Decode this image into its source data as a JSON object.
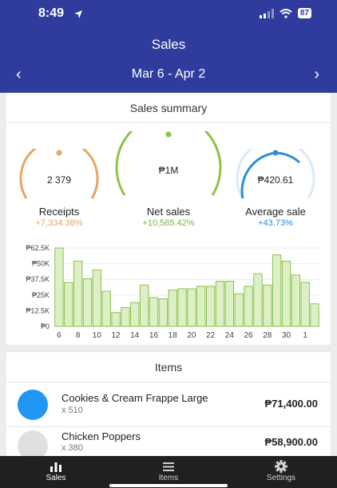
{
  "status_bar": {
    "time": "8:49",
    "battery": "87"
  },
  "header": {
    "title": "Sales",
    "date_range": "Mar 6 - Apr 2",
    "prev_icon": "chevron-left-icon",
    "next_icon": "chevron-right-icon"
  },
  "summary": {
    "title": "Sales summary",
    "metrics": [
      {
        "label": "Receipts",
        "value": "2 379",
        "change": "+7,334.38%",
        "color": "#e8a563",
        "change_color": "#e8a563"
      },
      {
        "label": "Net sales",
        "value": "₱1M",
        "change": "+10,585.42%",
        "color": "#8bc34a",
        "change_color": "#7cb342"
      },
      {
        "label": "Average sale",
        "value": "₱420.61",
        "change": "+43.73%",
        "color": "#2d8fd5",
        "change_color": "#2d8fd5"
      }
    ]
  },
  "chart_data": {
    "type": "bar",
    "ylim": [
      0,
      62500
    ],
    "y_ticks": [
      "₱0",
      "₱12.5K",
      "₱25K",
      "₱37.5K",
      "₱50K",
      "₱62.5K"
    ],
    "x_tick_labels": [
      "6",
      "8",
      "10",
      "12",
      "14",
      "16",
      "18",
      "20",
      "22",
      "24",
      "26",
      "28",
      "30",
      "1"
    ],
    "values": [
      62500,
      35000,
      52000,
      38000,
      45000,
      28000,
      11000,
      15000,
      19000,
      33000,
      23000,
      22000,
      29000,
      30000,
      30000,
      32000,
      32000,
      36000,
      36000,
      26000,
      32000,
      42000,
      33000,
      57000,
      52000,
      41000,
      35000,
      18000
    ],
    "bar_color": "#dcefc6",
    "bar_border": "#8bc34a",
    "grid": true
  },
  "items": {
    "title": "Items",
    "list": [
      {
        "name": "Cookies & Cream  Frappe Large",
        "qty": "x 510",
        "price": "₱71,400.00",
        "color": "#2196f3"
      },
      {
        "name": "Chicken Poppers",
        "qty": "x 380",
        "price": "₱58,900.00",
        "color": "#e0e0e0"
      }
    ]
  },
  "bottom_nav": {
    "tabs": [
      {
        "label": "Sales",
        "icon": "bar-chart-icon",
        "active": true
      },
      {
        "label": "Items",
        "icon": "list-icon",
        "active": false
      },
      {
        "label": "Settings",
        "icon": "gear-icon",
        "active": false
      }
    ]
  }
}
